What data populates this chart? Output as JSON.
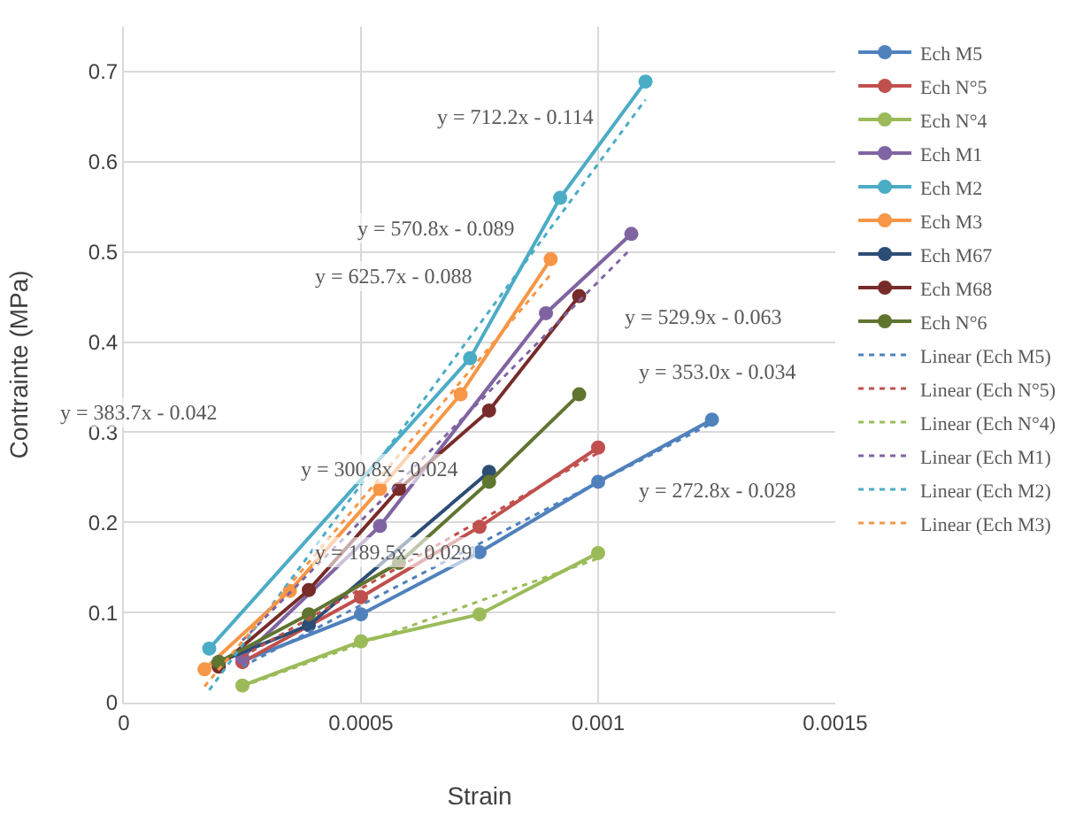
{
  "chart_data": {
    "type": "line",
    "xlabel": "Strain",
    "ylabel": "Contrainte (MPa)",
    "xlim": [
      0,
      0.0015
    ],
    "ylim": [
      0,
      0.75
    ],
    "xticks": [
      0,
      0.0005,
      0.001,
      0.0015
    ],
    "yticks": [
      0,
      0.1,
      0.2,
      0.3,
      0.4,
      0.5,
      0.6,
      0.7
    ],
    "grid": true,
    "legend": "right",
    "marker": "circle",
    "line_style": "solid",
    "series": [
      {
        "name": "Ech M5",
        "color": "#4f81bd",
        "x": [
          0.00025,
          0.0005,
          0.00075,
          0.001,
          0.00124
        ],
        "values": [
          0.046,
          0.098,
          0.167,
          0.245,
          0.314
        ]
      },
      {
        "name": "Ech N°5",
        "color": "#c0504d",
        "x": [
          0.00025,
          0.0005,
          0.00075,
          0.001
        ],
        "values": [
          0.045,
          0.117,
          0.195,
          0.283
        ]
      },
      {
        "name": "Ech N°4",
        "color": "#9bbb59",
        "x": [
          0.00025,
          0.0005,
          0.00075,
          0.001
        ],
        "values": [
          0.019,
          0.068,
          0.098,
          0.166
        ]
      },
      {
        "name": "Ech M1",
        "color": "#8064a2",
        "x": [
          0.00025,
          0.00054,
          0.00089,
          0.00107
        ],
        "values": [
          0.05,
          0.196,
          0.432,
          0.52
        ]
      },
      {
        "name": "Ech M2",
        "color": "#4bacc6",
        "x": [
          0.00018,
          0.00073,
          0.00092,
          0.0011
        ],
        "values": [
          0.06,
          0.382,
          0.56,
          0.689
        ]
      },
      {
        "name": "Ech M3",
        "color": "#f79646",
        "x": [
          0.00017,
          0.00035,
          0.00054,
          0.00071,
          0.0009
        ],
        "values": [
          0.037,
          0.124,
          0.237,
          0.342,
          0.492
        ]
      },
      {
        "name": "Ech M67",
        "color": "#2c4d75",
        "x": [
          0.0002,
          0.00039,
          0.00077
        ],
        "values": [
          0.045,
          0.086,
          0.256
        ]
      },
      {
        "name": "Ech M68",
        "color": "#772c2a",
        "x": [
          0.0002,
          0.00039,
          0.00058,
          0.00077,
          0.00096
        ],
        "values": [
          0.04,
          0.125,
          0.237,
          0.324,
          0.451
        ]
      },
      {
        "name": "Ech N°6",
        "color": "#5f7530",
        "x": [
          0.0002,
          0.00039,
          0.00058,
          0.00077,
          0.00096
        ],
        "values": [
          0.045,
          0.098,
          0.155,
          0.245,
          0.342
        ]
      },
      {
        "name": "Linear (Ech M5)",
        "type": "line",
        "line_style": "dotted",
        "marker": "none",
        "color": "#4f81bd",
        "x": [
          0.00025,
          0.00124
        ],
        "values": [
          0.04,
          0.31
        ]
      },
      {
        "name": "Linear (Ech N°5)",
        "type": "line",
        "line_style": "dotted",
        "marker": "none",
        "color": "#c0504d",
        "x": [
          0.00025,
          0.001
        ],
        "values": [
          0.051,
          0.277
        ]
      },
      {
        "name": "Linear (Ech N°4)",
        "type": "line",
        "line_style": "dotted",
        "marker": "none",
        "color": "#9bbb59",
        "x": [
          0.00025,
          0.001
        ],
        "values": [
          0.018,
          0.16
        ]
      },
      {
        "name": "Linear (Ech M1)",
        "type": "line",
        "line_style": "dotted",
        "marker": "none",
        "color": "#8064a2",
        "x": [
          0.00025,
          0.00107
        ],
        "values": [
          0.069,
          0.504
        ]
      },
      {
        "name": "Linear (Ech M2)",
        "type": "line",
        "line_style": "dotted",
        "marker": "none",
        "color": "#4bacc6",
        "x": [
          0.00018,
          0.0011
        ],
        "values": [
          0.014,
          0.669
        ]
      },
      {
        "name": "Linear (Ech M3)",
        "type": "line",
        "line_style": "dotted",
        "marker": "none",
        "color": "#f79646",
        "x": [
          0.00017,
          0.0009
        ],
        "values": [
          0.018,
          0.475
        ]
      }
    ],
    "annotations": [
      "y = 712.2x - 0.114",
      "y = 570.8x - 0.089",
      "y = 625.7x - 0.088",
      "y = 529.9x - 0.063",
      "y = 353.0x - 0.034",
      "y = 383.7x - 0.042",
      "y = 300.8x - 0.024",
      "y = 272.8x - 0.028",
      "y = 189.5x - 0.029"
    ]
  }
}
